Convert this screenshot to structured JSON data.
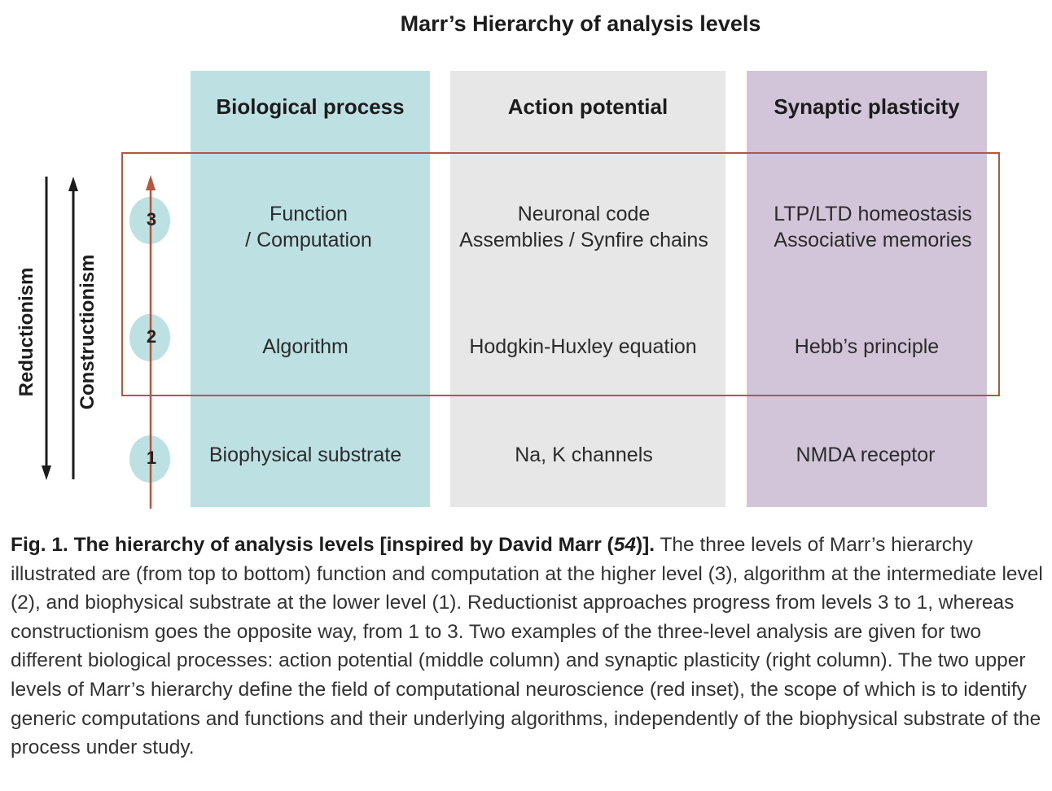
{
  "title": "Marr’s Hierarchy of analysis levels",
  "columns": [
    {
      "header": "Biological process",
      "level3": [
        "Function",
        "/ Computation"
      ],
      "level2": "Algorithm",
      "level1": "Biophysical substrate"
    },
    {
      "header": "Action potential",
      "level3": [
        "Neuronal code",
        "Assemblies / Synfire chains"
      ],
      "level2": "Hodgkin-Huxley equation",
      "level1": "Na, K channels"
    },
    {
      "header": "Synaptic plasticity",
      "level3": [
        "LTP/LTD homeostasis",
        "Associative memories"
      ],
      "level2": "Hebb’s principle",
      "level1": "NMDA receptor"
    }
  ],
  "levels": [
    "3",
    "2",
    "1"
  ],
  "side_labels": {
    "reductionism": "Reductionism",
    "constructionism": "Constructionism"
  },
  "colors": {
    "biological_column": "#bde0e3",
    "action_potential_column": "#e6e7e6",
    "synaptic_plasticity_column": "#d2c5d9",
    "red_inset": "#b8553f",
    "arrows": "#1c1c1c"
  },
  "caption": {
    "lead_a": "Fig. 1. The hierarchy of analysis levels [inspired by David Marr (",
    "lead_ref": "54",
    "lead_b": ")].",
    "body": " The three levels of Marr’s hierarchy illustrated are (from top to bottom) function and computation at the higher level (3), algorithm at the intermediate level (2), and biophysical substrate at the lower level (1). Reductionist approaches progress from levels 3 to 1, whereas constructionism goes the opposite way, from 1 to 3. Two examples of the three-level analysis are given for two different biological processes: action potential (middle column) and synaptic plasticity (right column). The two upper levels of Marr’s hierarchy define the field of computational neuroscience (red inset), the scope of which is to identify generic computations and functions and their underlying algorithms, independently of the biophysical substrate of the process under study."
  }
}
